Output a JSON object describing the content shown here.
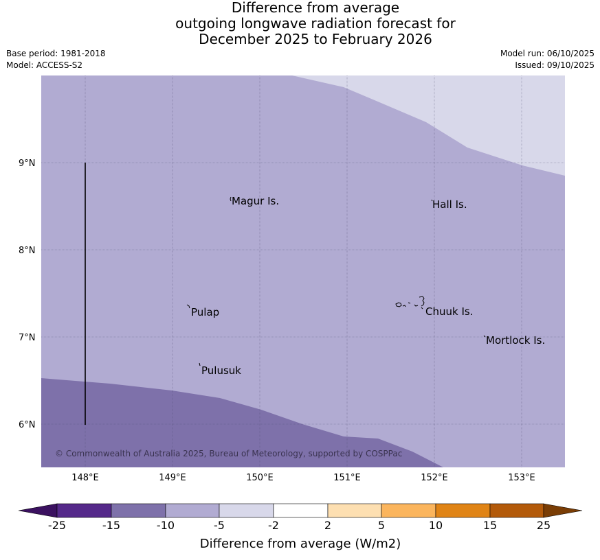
{
  "title": {
    "line1": "Difference from average",
    "line2": "outgoing longwave radiation forecast for",
    "line3": "December 2025 to February 2026"
  },
  "meta": {
    "base_period": "Base period: 1981-2018",
    "model": "Model: ACCESS-S2",
    "model_run": "Model run: 06/10/2025",
    "issued": "Issued: 09/10/2025"
  },
  "map": {
    "lon_range": [
      147.5,
      153.5
    ],
    "lat_range": [
      5.5,
      10.0
    ],
    "lon_ticks": [
      "148°E",
      "149°E",
      "150°E",
      "151°E",
      "152°E",
      "153°E"
    ],
    "lat_ticks": [
      "9°N",
      "8°N",
      "7°N",
      "6°N"
    ],
    "places": [
      {
        "name": "Magur Is.",
        "lon": 149.66,
        "lat": 8.56
      },
      {
        "name": "Hall Is.",
        "lon": 151.98,
        "lat": 8.52
      },
      {
        "name": "Pulap",
        "lon": 149.2,
        "lat": 7.3
      },
      {
        "name": "Chuuk Is.",
        "lon": 151.88,
        "lat": 7.29
      },
      {
        "name": "Mortlock Is.",
        "lon": 152.58,
        "lat": 6.95
      },
      {
        "name": "Pulusuk",
        "lon": 149.32,
        "lat": 6.63
      }
    ],
    "copyright": "© Commonwealth of Australia 2025, Bureau of Meteorology, supported by COSPPac"
  },
  "colorbar": {
    "label": "Difference from average (W/m2)",
    "ticks": [
      "-25",
      "-15",
      "-10",
      "-5",
      "-2",
      "2",
      "5",
      "10",
      "15",
      "25"
    ],
    "colors": {
      "under": "#3b1160",
      "b1": "#55298a",
      "b2": "#7e71aa",
      "b3": "#b1abd2",
      "b4": "#d8d8ea",
      "b5": "#ffffff",
      "b6": "#fddfb1",
      "b7": "#fbb55d",
      "b8": "#e08416",
      "b9": "#b35a0a",
      "over": "#7a3d05"
    }
  }
}
